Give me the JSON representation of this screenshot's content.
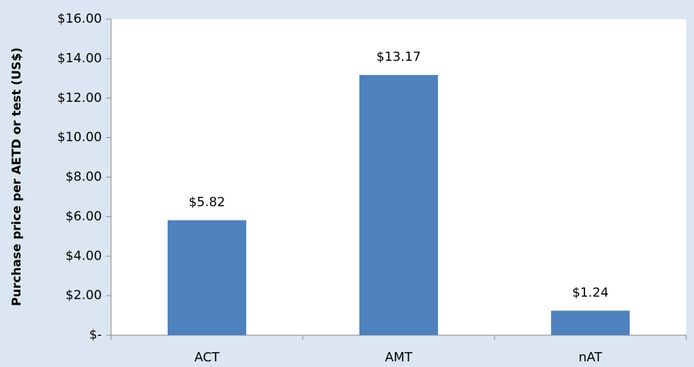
{
  "chart_data": {
    "type": "bar",
    "ylabel": "Purchase price per AETD or test (US$)",
    "categories": [
      "ACT",
      "AMT",
      "nAT"
    ],
    "values": [
      5.82,
      13.17,
      1.24
    ],
    "value_labels": [
      "$5.82",
      "$13.17",
      "$1.24"
    ],
    "color": "#4f81bd",
    "ylim": [
      0,
      16
    ],
    "yticks": [
      {
        "value": 0,
        "label": "$-"
      },
      {
        "value": 2,
        "label": "$2.00"
      },
      {
        "value": 4,
        "label": "$4.00"
      },
      {
        "value": 6,
        "label": "$6.00"
      },
      {
        "value": 8,
        "label": "$8.00"
      },
      {
        "value": 10,
        "label": "$10.00"
      },
      {
        "value": 12,
        "label": "$12.00"
      },
      {
        "value": 14,
        "label": "$14.00"
      },
      {
        "value": 16,
        "label": "$16.00"
      }
    ],
    "grid": false
  }
}
